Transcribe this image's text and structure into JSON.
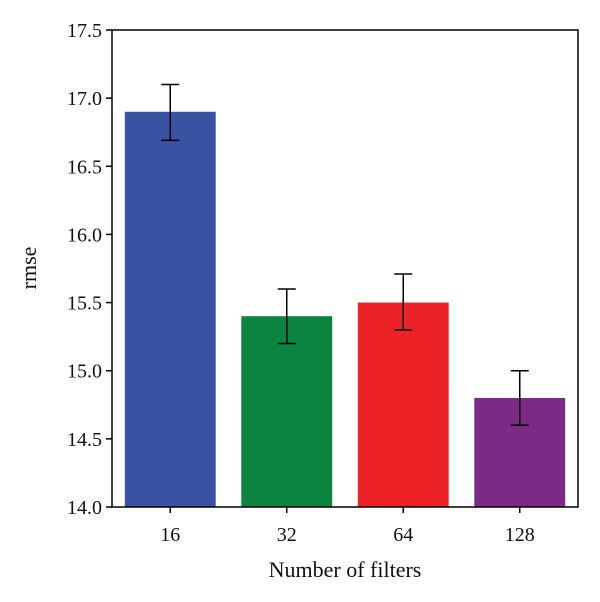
{
  "chart_data": {
    "type": "bar",
    "title": "",
    "xlabel": "Number of filters",
    "ylabel": "rmse",
    "categories": [
      "16",
      "32",
      "64",
      "128"
    ],
    "values": [
      16.9,
      15.4,
      15.5,
      14.8
    ],
    "error": [
      {
        "low": 16.69,
        "high": 17.1
      },
      {
        "low": 15.2,
        "high": 15.6
      },
      {
        "low": 15.3,
        "high": 15.71
      },
      {
        "low": 14.6,
        "high": 15.0
      }
    ],
    "colors": [
      "#3a52a2",
      "#0b8440",
      "#ec2227",
      "#7b2a86"
    ],
    "ylim": [
      14.0,
      17.5
    ],
    "yticks": [
      "14.0",
      "14.5",
      "15.0",
      "15.5",
      "16.0",
      "16.5",
      "17.0",
      "17.5"
    ],
    "grid": false,
    "legend": "none"
  }
}
